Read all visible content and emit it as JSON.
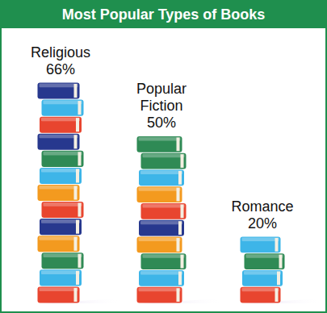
{
  "chart_data": {
    "type": "bar",
    "title": "Most Popular Types of Books",
    "categories": [
      "Religious",
      "Popular Fiction",
      "Romance"
    ],
    "values": [
      66,
      50,
      20
    ],
    "value_labels": [
      "66%",
      "50%",
      "20%"
    ],
    "data_labels": true,
    "tick_labels": false
  }
}
